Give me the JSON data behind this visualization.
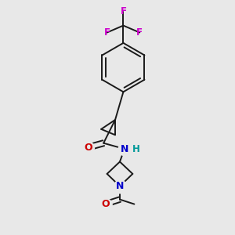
{
  "background_color": "#e8e8e8",
  "bond_color": "#1a1a1a",
  "O_color": "#cc0000",
  "N_color": "#0000cc",
  "F_color": "#cc00cc",
  "H_color": "#009999",
  "line_width": 1.4,
  "font_size": 8.5,
  "fig_size": [
    3.0,
    3.0
  ],
  "dpi": 100,
  "xlim": [
    0.0,
    1.0
  ],
  "ylim": [
    0.0,
    1.0
  ]
}
